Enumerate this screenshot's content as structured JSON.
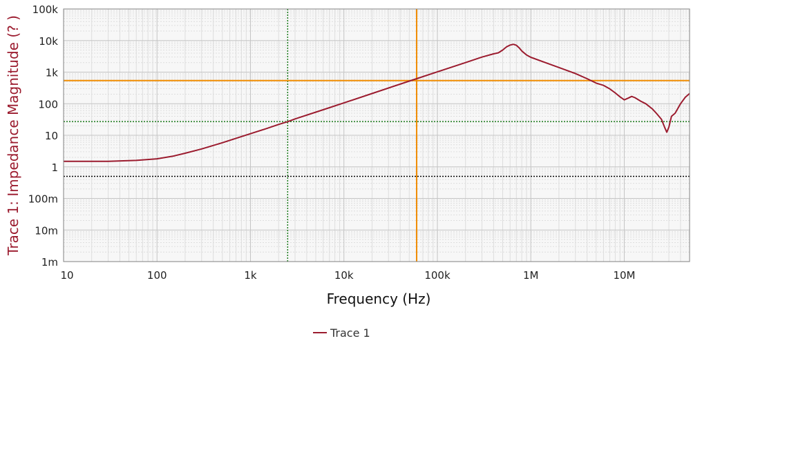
{
  "chart_data": {
    "type": "line",
    "xlabel": "Frequency (Hz)",
    "ylabel": "Trace 1: Impedance Magnitude (? )",
    "x_scale": "log",
    "y_scale": "log",
    "xlim": [
      10,
      50000000
    ],
    "ylim": [
      0.001,
      100000
    ],
    "grid": true,
    "legend_position": "bottom-center",
    "x_ticks": [
      {
        "value": 10,
        "label": "10"
      },
      {
        "value": 100,
        "label": "100"
      },
      {
        "value": 1000,
        "label": "1k"
      },
      {
        "value": 10000,
        "label": "10k"
      },
      {
        "value": 100000,
        "label": "100k"
      },
      {
        "value": 1000000,
        "label": "1M"
      },
      {
        "value": 10000000,
        "label": "10M"
      }
    ],
    "y_ticks": [
      {
        "value": 100000,
        "label": "100k"
      },
      {
        "value": 10000,
        "label": "10k"
      },
      {
        "value": 1000,
        "label": "1k"
      },
      {
        "value": 100,
        "label": "100"
      },
      {
        "value": 10,
        "label": "10"
      },
      {
        "value": 1,
        "label": "1"
      },
      {
        "value": 0.1,
        "label": "100m"
      },
      {
        "value": 0.01,
        "label": "10m"
      },
      {
        "value": 0.001,
        "label": "1m"
      }
    ],
    "series": [
      {
        "name": "Trace 1",
        "color": "#9b1b2e",
        "points": [
          [
            10,
            1.5
          ],
          [
            30,
            1.5
          ],
          [
            60,
            1.6
          ],
          [
            100,
            1.8
          ],
          [
            150,
            2.2
          ],
          [
            200,
            2.7
          ],
          [
            300,
            3.7
          ],
          [
            500,
            5.8
          ],
          [
            700,
            8
          ],
          [
            1000,
            11.2
          ],
          [
            1500,
            16.5
          ],
          [
            2000,
            22
          ],
          [
            2500,
            27
          ],
          [
            3000,
            33
          ],
          [
            5000,
            54
          ],
          [
            7000,
            75
          ],
          [
            10000,
            106
          ],
          [
            20000,
            210
          ],
          [
            30000,
            315
          ],
          [
            50000,
            520
          ],
          [
            60000,
            620
          ],
          [
            100000,
            1020
          ],
          [
            200000,
            2000
          ],
          [
            300000,
            3000
          ],
          [
            400000,
            3800
          ],
          [
            450000,
            4100
          ],
          [
            500000,
            5000
          ],
          [
            550000,
            6300
          ],
          [
            600000,
            7200
          ],
          [
            650000,
            7600
          ],
          [
            700000,
            7100
          ],
          [
            750000,
            5900
          ],
          [
            800000,
            4700
          ],
          [
            900000,
            3500
          ],
          [
            1000000,
            2950
          ],
          [
            1500000,
            1900
          ],
          [
            2000000,
            1400
          ],
          [
            3000000,
            900
          ],
          [
            4000000,
            620
          ],
          [
            5000000,
            450
          ],
          [
            6000000,
            380
          ],
          [
            7000000,
            295
          ],
          [
            8000000,
            220
          ],
          [
            9000000,
            165
          ],
          [
            10000000,
            132
          ],
          [
            11000000,
            150
          ],
          [
            12000000,
            170
          ],
          [
            13000000,
            155
          ],
          [
            15000000,
            120
          ],
          [
            17000000,
            100
          ],
          [
            20000000,
            68
          ],
          [
            22000000,
            50
          ],
          [
            25000000,
            32
          ],
          [
            27000000,
            18
          ],
          [
            28500000,
            12.5
          ],
          [
            30000000,
            18
          ],
          [
            32000000,
            40
          ],
          [
            35000000,
            50
          ],
          [
            40000000,
            100
          ],
          [
            45000000,
            160
          ],
          [
            50000000,
            210
          ]
        ]
      }
    ],
    "cursors": [
      {
        "orientation": "vertical",
        "value": 2500,
        "color": "#1a7a1a",
        "style": "dotted"
      },
      {
        "orientation": "horizontal",
        "value": 27,
        "color": "#1a7a1a",
        "style": "dotted"
      },
      {
        "orientation": "vertical",
        "value": 60000,
        "color": "#f08c00",
        "style": "solid"
      },
      {
        "orientation": "horizontal",
        "value": 540,
        "color": "#f08c00",
        "style": "solid"
      },
      {
        "orientation": "horizontal",
        "value": 0.5,
        "color": "#000000",
        "style": "dotted"
      }
    ]
  }
}
